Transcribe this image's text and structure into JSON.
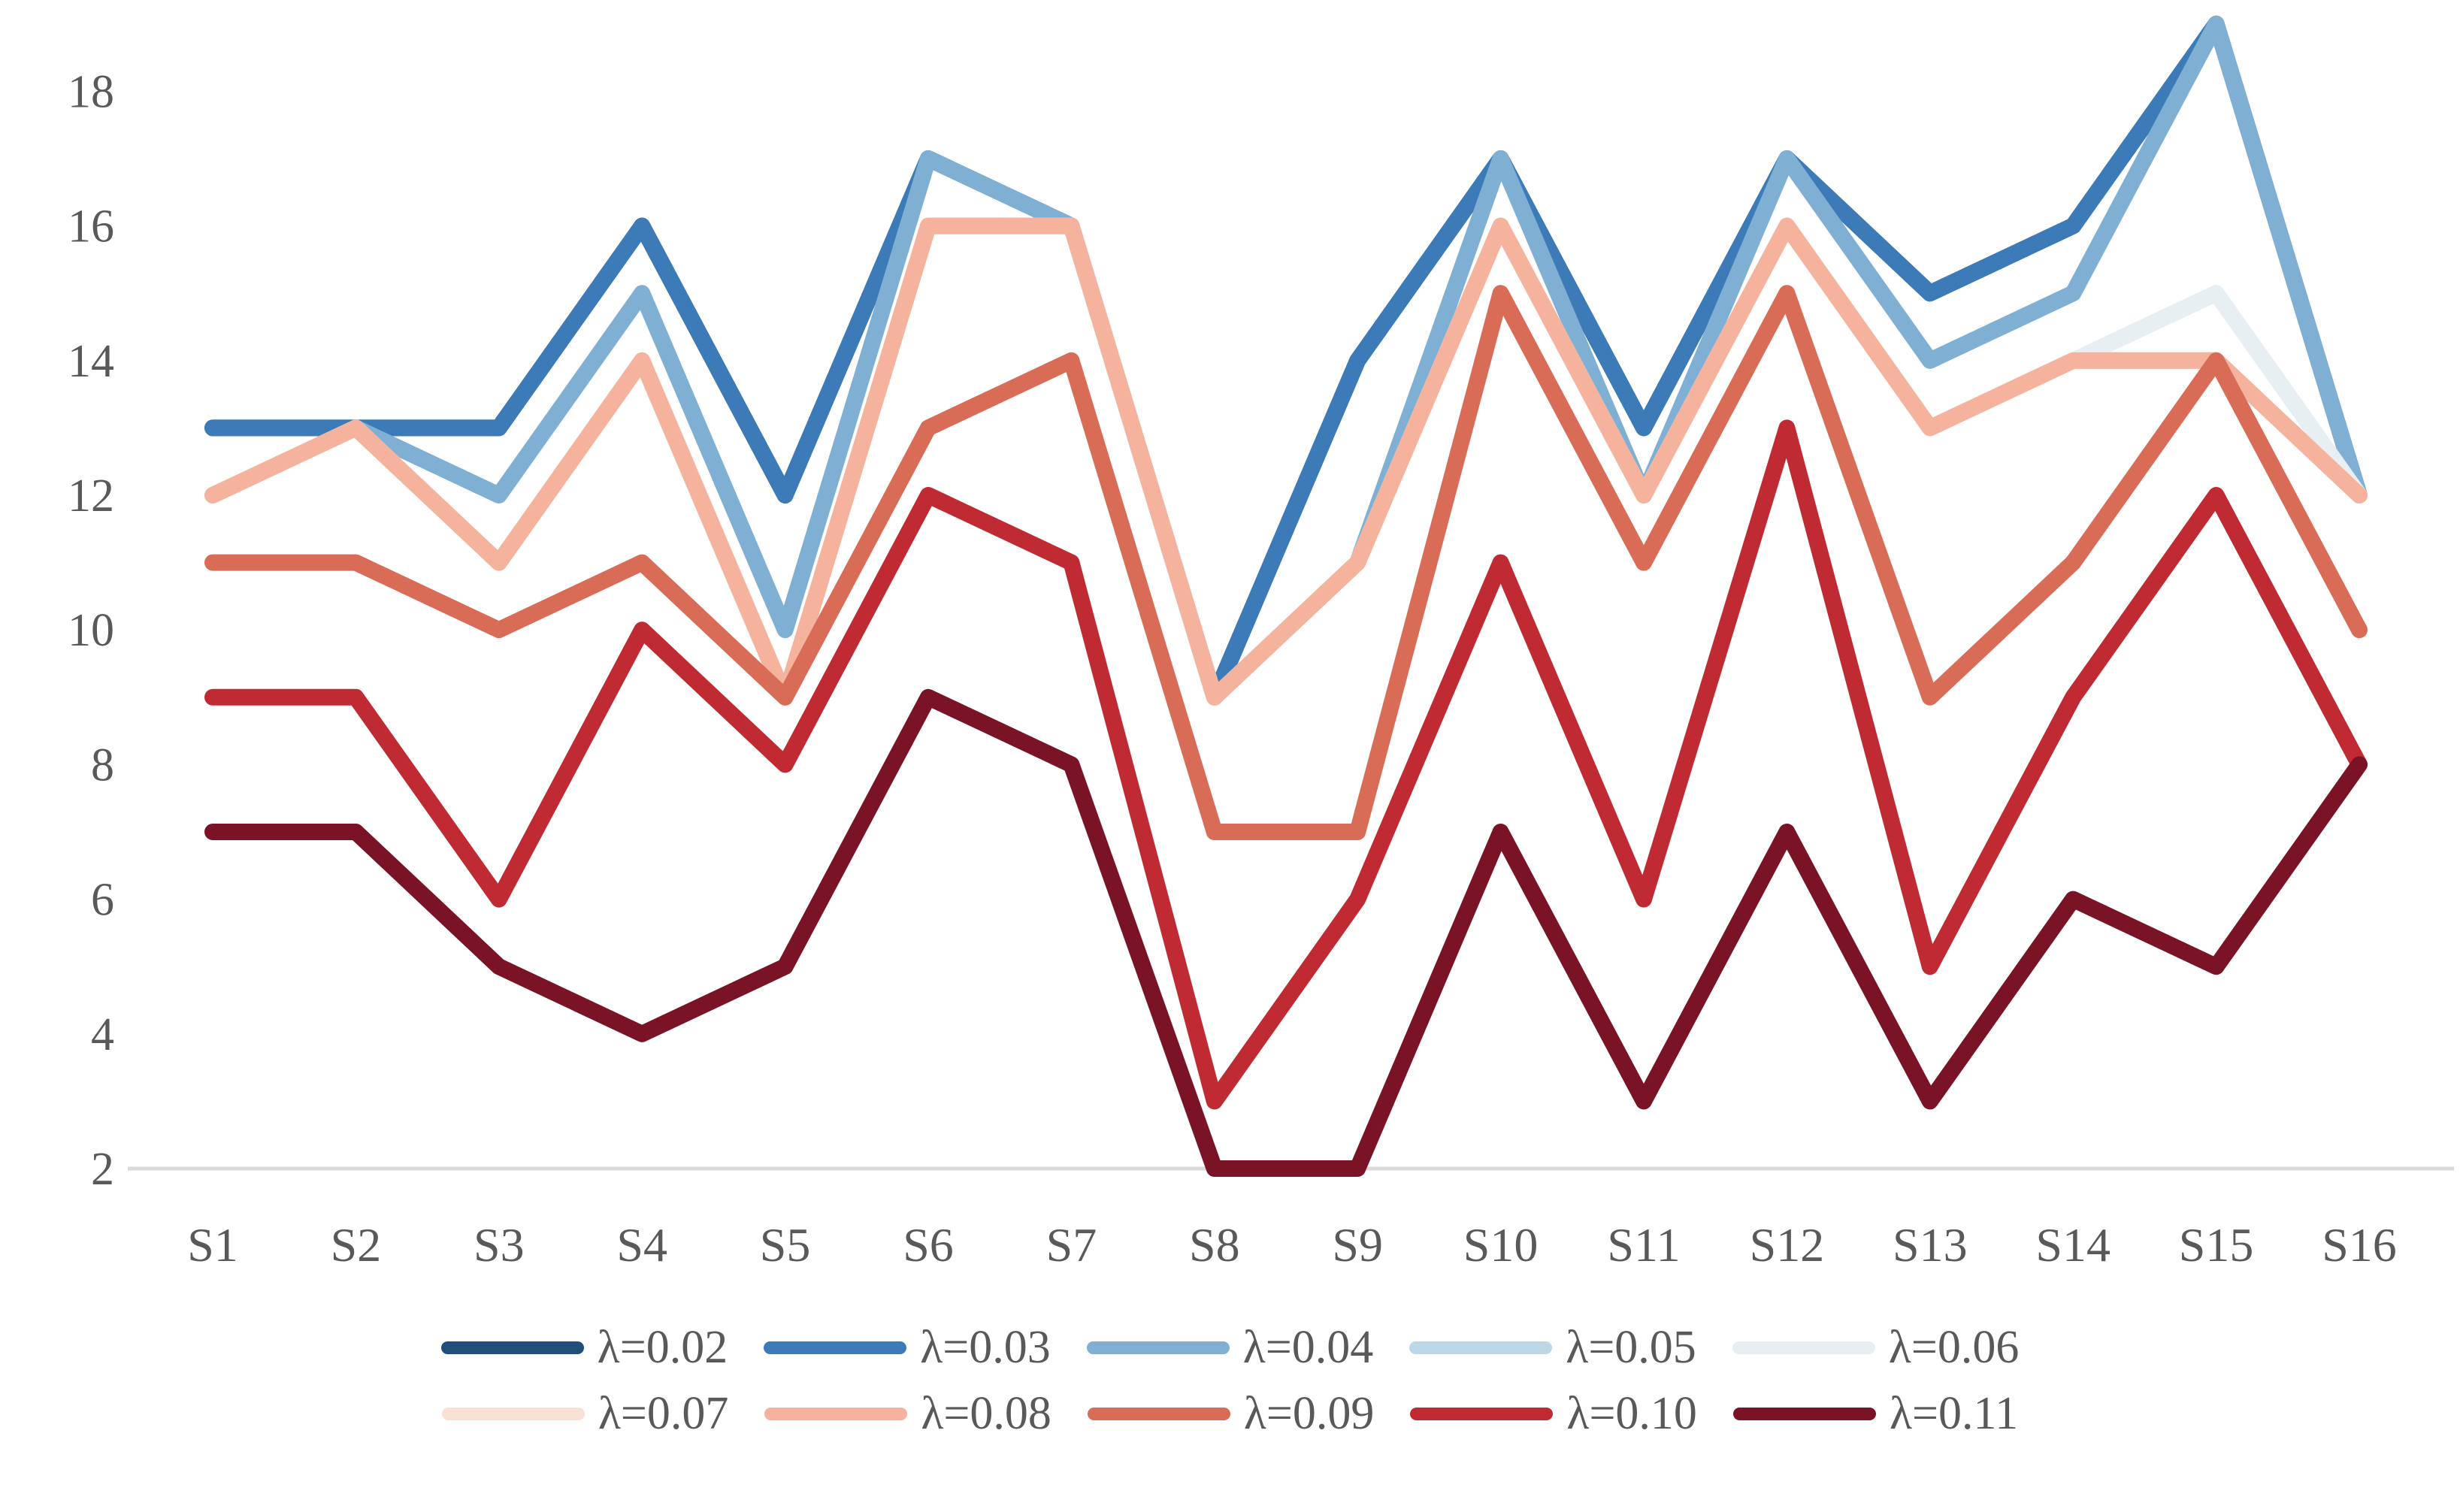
{
  "chart_data": {
    "type": "line",
    "title": "",
    "xlabel": "",
    "ylabel": "",
    "categories": [
      "S1",
      "S2",
      "S3",
      "S4",
      "S5",
      "S6",
      "S7",
      "S8",
      "S9",
      "S10",
      "S11",
      "S12",
      "S13",
      "S14",
      "S15",
      "S16"
    ],
    "yticks": [
      2,
      4,
      6,
      8,
      10,
      12,
      14,
      16,
      18
    ],
    "ylim": [
      2,
      19.3
    ],
    "grid": false,
    "legend_position": "bottom",
    "legend_rows": 2,
    "axis_line_color": "#d9d9d9",
    "tick_label_color": "#595959",
    "background_color": "#ffffff",
    "line_width": 22,
    "series": [
      {
        "name": "λ=0.02",
        "color": "#1f4e79",
        "values": [
          13,
          13,
          13,
          16,
          12,
          17,
          16,
          9,
          14,
          17,
          13,
          17,
          15,
          16,
          19,
          12
        ]
      },
      {
        "name": "λ=0.03",
        "color": "#3c7bb7",
        "values": [
          13,
          13,
          13,
          16,
          12,
          17,
          16,
          9,
          14,
          17,
          13,
          17,
          15,
          16,
          19,
          12
        ]
      },
      {
        "name": "λ=0.04",
        "color": "#7fb0d4",
        "values": [
          12,
          13,
          12,
          15,
          10,
          17,
          16,
          9,
          11,
          17,
          12,
          17,
          14,
          15,
          19,
          12
        ]
      },
      {
        "name": "λ=0.05",
        "color": "#bcd7e8",
        "values": [
          12,
          13,
          11,
          14,
          9,
          16,
          16,
          9,
          11,
          16,
          12,
          16,
          13,
          14,
          14,
          12
        ]
      },
      {
        "name": "λ=0.06",
        "color": "#e8eff2",
        "values": [
          12,
          13,
          11,
          14,
          9,
          16,
          16,
          9,
          11,
          16,
          12,
          16,
          13,
          14,
          15,
          12
        ]
      },
      {
        "name": "λ=0.07",
        "color": "#f9e0d5",
        "values": [
          12,
          13,
          11,
          14,
          9,
          16,
          16,
          9,
          11,
          16,
          12,
          16,
          13,
          14,
          14,
          12
        ]
      },
      {
        "name": "λ=0.08",
        "color": "#f5b39d",
        "values": [
          12,
          13,
          11,
          14,
          9,
          16,
          16,
          9,
          11,
          16,
          12,
          16,
          13,
          14,
          14,
          12
        ]
      },
      {
        "name": "λ=0.09",
        "color": "#d96c57",
        "values": [
          11,
          11,
          10,
          11,
          9,
          13,
          14,
          7,
          7,
          15,
          11,
          15,
          9,
          11,
          14,
          10
        ]
      },
      {
        "name": "λ=0.10",
        "color": "#c02b33",
        "values": [
          9,
          9,
          6,
          10,
          8,
          12,
          11,
          3,
          6,
          11,
          6,
          13,
          5,
          9,
          12,
          8
        ]
      },
      {
        "name": "λ=0.11",
        "color": "#7a1325",
        "values": [
          7,
          7,
          5,
          4,
          5,
          9,
          8,
          2,
          2,
          7,
          3,
          7,
          3,
          6,
          5,
          8
        ]
      }
    ]
  }
}
